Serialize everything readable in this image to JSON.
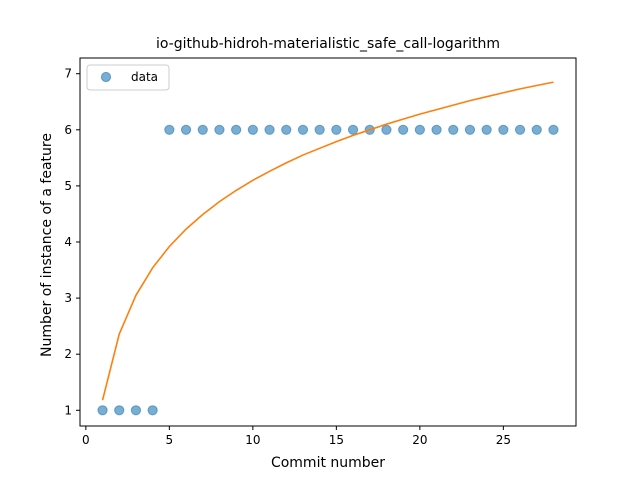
{
  "chart_data": {
    "type": "scatter",
    "title": "io-github-hidroh-materialistic_safe_call-logarithm",
    "xlabel": "Commit number",
    "ylabel": "Number of instance of a feature",
    "xlim": [
      -0.35,
      29.35
    ],
    "ylim": [
      0.72,
      7.28
    ],
    "xticks": [
      0,
      5,
      10,
      15,
      20,
      25
    ],
    "yticks": [
      1,
      2,
      3,
      4,
      5,
      6,
      7
    ],
    "grid": false,
    "legend": {
      "placement": "top-left",
      "entries": [
        "data"
      ]
    },
    "series": [
      {
        "name": "data",
        "kind": "scatter",
        "color": "#1f77b4",
        "x": [
          1,
          2,
          3,
          4,
          5,
          6,
          7,
          8,
          9,
          10,
          11,
          12,
          13,
          14,
          15,
          16,
          17,
          18,
          19,
          20,
          21,
          22,
          23,
          24,
          25,
          26,
          27,
          28
        ],
        "y": [
          1,
          1,
          1,
          1,
          6,
          6,
          6,
          6,
          6,
          6,
          6,
          6,
          6,
          6,
          6,
          6,
          6,
          6,
          6,
          6,
          6,
          6,
          6,
          6,
          6,
          6,
          6,
          6
        ]
      },
      {
        "kind": "line",
        "color": "#ff7f0e",
        "x": [
          1,
          2,
          3,
          4,
          5,
          6,
          7,
          8,
          9,
          10,
          11,
          12,
          13,
          14,
          15,
          16,
          17,
          18,
          19,
          20,
          21,
          22,
          23,
          24,
          25,
          26,
          27,
          28
        ],
        "y": [
          1.18,
          2.36,
          3.05,
          3.54,
          3.92,
          4.23,
          4.49,
          4.72,
          4.92,
          5.1,
          5.26,
          5.41,
          5.55,
          5.67,
          5.79,
          5.9,
          6.0,
          6.1,
          6.19,
          6.28,
          6.36,
          6.44,
          6.52,
          6.59,
          6.66,
          6.73,
          6.79,
          6.85
        ]
      }
    ]
  }
}
